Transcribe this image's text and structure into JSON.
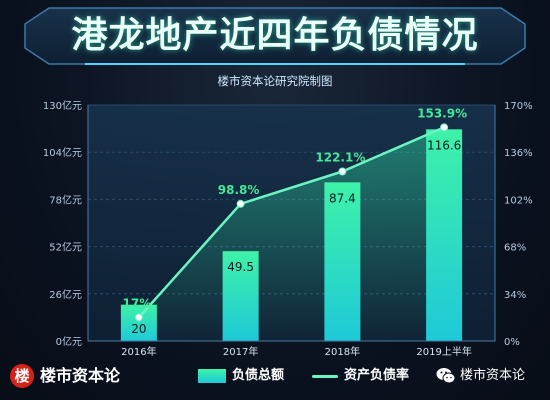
{
  "title": "港龙地产近四年负债情况",
  "source_note": "楼市资本论研究院制图",
  "footer": {
    "logo_char": "楼",
    "logo_name": "楼市资本论",
    "wechat_name": "楼市资本论",
    "icon": "wechat-icon"
  },
  "colors": {
    "bar_top": "#3ef2a8",
    "bar_bottom": "#1ec9d8",
    "line": "#6cf5c0",
    "rate_label": "#44e896",
    "background": "#0b1220"
  },
  "chart_data": {
    "type": "bar",
    "categories": [
      "2016年",
      "2017年",
      "2018年",
      "2019上半年"
    ],
    "series": [
      {
        "name": "负债总额",
        "type": "bar",
        "axis": "left",
        "values": [
          20,
          49.5,
          87.4,
          116.6
        ],
        "labels": [
          "20",
          "49.5",
          "87.4",
          "116.6"
        ]
      },
      {
        "name": "资产负债率",
        "type": "line",
        "axis": "right",
        "values": [
          17,
          98.8,
          122.1,
          153.9
        ],
        "labels": [
          "17%",
          "98.8%",
          "122.1%",
          "153.9%"
        ]
      }
    ],
    "y_left": {
      "range": [
        0,
        130
      ],
      "ticks": [
        0,
        26,
        52,
        78,
        104,
        130
      ],
      "tick_labels": [
        "0亿元",
        "26亿元",
        "52亿元",
        "78亿元",
        "104亿元",
        "130亿元"
      ]
    },
    "y_right": {
      "range": [
        0,
        170
      ],
      "ticks": [
        0,
        34,
        68,
        102,
        136,
        170
      ],
      "tick_labels": [
        "0%",
        "34%",
        "68%",
        "102%",
        "136%",
        "170%"
      ]
    },
    "grid": true,
    "legend_position": "bottom"
  }
}
